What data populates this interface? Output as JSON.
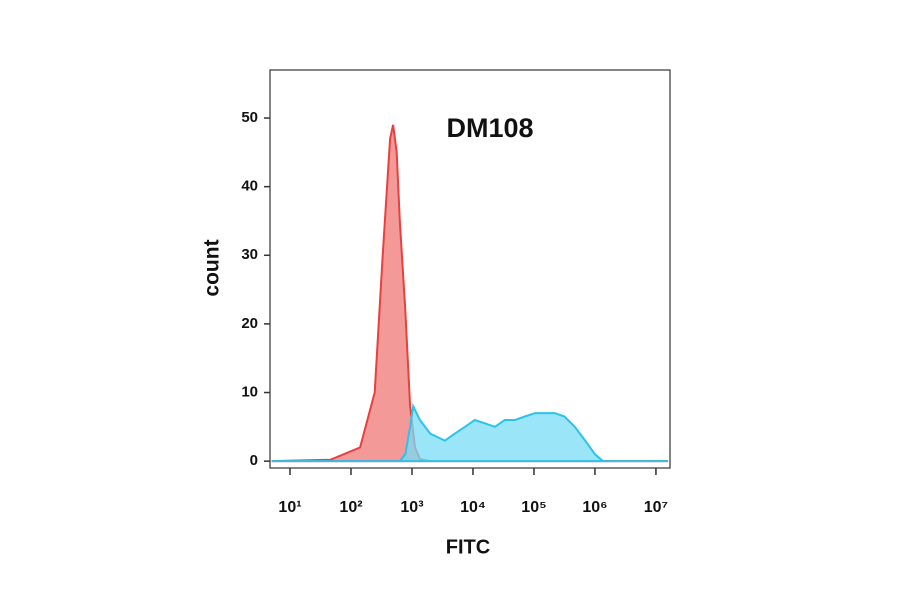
{
  "chart_data": {
    "type": "area",
    "annotation": "DM108",
    "x_label": "FITC",
    "y_label": "count",
    "xscale": "log",
    "xlim": [
      4.7,
      17000000
    ],
    "xticks": [
      {
        "value": 10,
        "label": "10¹"
      },
      {
        "value": 100,
        "label": "10²"
      },
      {
        "value": 1000,
        "label": "10³"
      },
      {
        "value": 10000,
        "label": "10⁴"
      },
      {
        "value": 100000,
        "label": "10⁵"
      },
      {
        "value": 1000000,
        "label": "10⁶"
      },
      {
        "value": 10000000,
        "label": "10⁷"
      }
    ],
    "ylim": [
      -1,
      57
    ],
    "yticks": [
      0,
      10,
      20,
      30,
      40,
      50
    ],
    "series": [
      {
        "color": "#e8403f",
        "fill": "#f39a98",
        "x": [
          5,
          46,
          141,
          245,
          331,
          437,
          490,
          562,
          631,
          776,
          933,
          1122,
          1349,
          1995,
          15800000
        ],
        "values": [
          0,
          0.2,
          2,
          10,
          30,
          47,
          49,
          45,
          35,
          22,
          8,
          2,
          0.3,
          0,
          0
        ]
      },
      {
        "color": "#2cc3ea",
        "fill": "#78dcf6",
        "x": [
          5,
          631,
          776,
          933,
          1047,
          1349,
          1995,
          3467,
          5012,
          7413,
          10715,
          15849,
          22909,
          33113,
          48978,
          70795,
          104713,
          151356,
          218776,
          316228,
          467735,
          691831,
          1000000,
          1348963,
          15800000
        ],
        "values": [
          0,
          0,
          1,
          5,
          8,
          6,
          4,
          3,
          4,
          5,
          6,
          5.5,
          5,
          6,
          6,
          6.5,
          7,
          7,
          7,
          6.5,
          5,
          3,
          1,
          0,
          0
        ]
      }
    ]
  }
}
